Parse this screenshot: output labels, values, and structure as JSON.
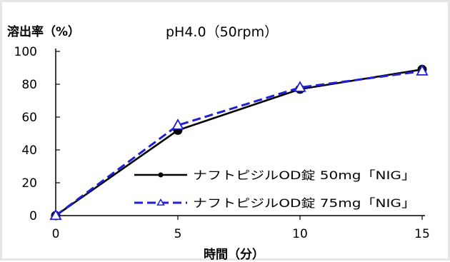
{
  "chart_data": {
    "type": "line",
    "title": "pH4.0（50rpm）",
    "ylabel": "溶出率（%）",
    "xlabel": "時間（分）",
    "x": [
      0,
      5,
      10,
      15
    ],
    "xticks": [
      "0",
      "5",
      "10",
      "15"
    ],
    "yticks": [
      "0",
      "20",
      "40",
      "60",
      "80",
      "100"
    ],
    "xlim": [
      0,
      15
    ],
    "ylim": [
      0,
      100
    ],
    "grid": false,
    "legend_position": "bottom-right",
    "series": [
      {
        "name": "ナフトピジルOD錠 50mg「NIG」",
        "values": [
          0,
          52,
          77,
          89
        ],
        "color": "#000000",
        "line_style": "solid",
        "marker": "filled-circle"
      },
      {
        "name": "ナフトピジルOD錠 75mg「NIG」",
        "values": [
          0,
          55,
          78,
          88
        ],
        "color": "#1f1fd6",
        "line_style": "dashed",
        "marker": "open-triangle"
      }
    ]
  }
}
